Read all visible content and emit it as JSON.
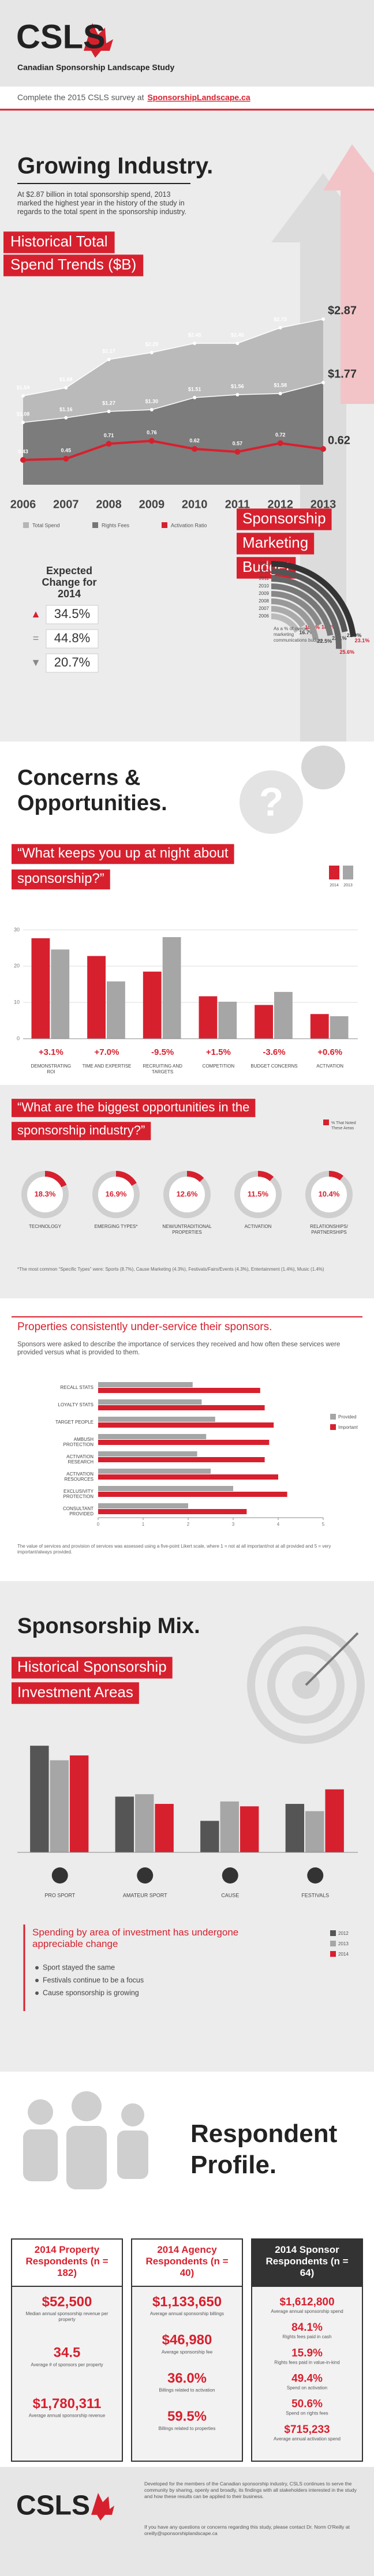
{
  "header": {
    "logo": "CSLS",
    "subtitle": "Canadian Sponsorship Landscape Study",
    "banner": "Complete the 2015 CSLS survey at",
    "banner_link": "SponsorshipLandscape.ca"
  },
  "growing": {
    "title": "Growing Industry.",
    "text": "At $2.87 billion in total sponsorship spend, 2013 marked the highest year in the history of the study in regards to the total spent in the sponsorship industry."
  },
  "concerns": {
    "title": "Concerns & Opportunities."
  },
  "mix": {
    "title": "Sponsorship Mix.",
    "heading": "Spending by area of investment has undergone appreciable change",
    "bullets": [
      "Sport stayed the same",
      "Festivals continue to be a focus",
      "Cause sponsorship is growing"
    ]
  },
  "profile": {
    "title": "Respondent Profile.",
    "columns": [
      {
        "title": "2014 Property Respondents (n = 182)",
        "items": [
          {
            "value": "$52,500",
            "label": "Median annual sponsorship revenue per property"
          },
          {
            "value": "34.5",
            "label": "Average # of sponsors per property"
          },
          {
            "value": "$1,780,311",
            "label": "Average annual sponsorship revenue"
          }
        ]
      },
      {
        "title": "2014 Agency Respondents (n = 40)",
        "items": [
          {
            "value": "$1,133,650",
            "label": "Average annual sponsorship billings"
          },
          {
            "value": "$46,980",
            "label": "Average sponsorship fee"
          },
          {
            "value": "36.0%",
            "label": "Billings related to activation"
          },
          {
            "value": "59.5%",
            "label": "Billings related to properties"
          }
        ]
      },
      {
        "title": "2014 Sponsor Respondents (n = 64)",
        "items": [
          {
            "value": "$1,612,800",
            "label": "Average annual sponsorship spend"
          },
          {
            "value": "84.1%",
            "label": "Rights fees paid in cash"
          },
          {
            "value": "15.9%",
            "label": "Rights fees paid in value-in-kind"
          },
          {
            "value": "49.4%",
            "label": "Spend on activation"
          },
          {
            "value": "50.6%",
            "label": "Spend on rights fees"
          },
          {
            "value": "$715,233",
            "label": "Average annual activation spend"
          }
        ]
      }
    ]
  },
  "footer": {
    "logo": "CSLS",
    "text": "Developed for the members of the Canadian sponsorship industry, CSLS continues to serve the community by sharing, openly and broadly, its findings with all stakeholders interested in the study and how these results can be applied to their business.",
    "contact": "If you have any questions or concerns regarding this study, please contact Dr. Norm O'Reilly at oreilly@sponsorshiplandscape.ca"
  },
  "chart_data": [
    {
      "type": "line",
      "title": "Historical Total Spend Trends ($B)",
      "categories": [
        "2006",
        "2007",
        "2008",
        "2009",
        "2010",
        "2011",
        "2012",
        "2013"
      ],
      "ylim": [
        0,
        3.2
      ],
      "series": [
        {
          "name": "Total Spend",
          "color": "#b5b5b5",
          "values": [
            1.54,
            1.68,
            2.17,
            2.29,
            2.45,
            2.45,
            2.72,
            2.87
          ],
          "value_labels": [
            "$1.54",
            "$1.68",
            "$2.17",
            "$2.29",
            "$2.45",
            "$2.45",
            "$2.72",
            "$2.87"
          ]
        },
        {
          "name": "Rights Fees",
          "color": "#767676",
          "values": [
            1.08,
            1.16,
            1.27,
            1.3,
            1.51,
            1.56,
            1.58,
            1.77
          ],
          "value_labels": [
            "$1.08",
            "$1.16",
            "$1.27",
            "$1.30",
            "$1.51",
            "$1.56",
            "$1.58",
            "$1.77"
          ]
        },
        {
          "name": "Activation Ratio",
          "color": "#d7202e",
          "values": [
            0.43,
            0.45,
            0.71,
            0.76,
            0.62,
            0.57,
            0.72,
            0.62
          ]
        }
      ]
    },
    {
      "type": "list",
      "title": "Expected Change for 2014",
      "values": [
        34.5,
        44.8,
        20.7
      ],
      "value_labels": [
        "34.5%",
        "44.8%",
        "20.7%"
      ],
      "color": "#d7202e"
    },
    {
      "type": "radial",
      "title": "Sponsorship Marketing Budget",
      "subtitle": "As a % of overall marketing communications budget",
      "categories": [
        "2006",
        "2007",
        "2008",
        "2009",
        "2010",
        "2011",
        "2012",
        "2013"
      ],
      "values": [
        16.7,
        15.9,
        22.5,
        18.3,
        22.1,
        25.6,
        21.9,
        23.1
      ],
      "value_labels": [
        "16.7%",
        "15.9%",
        "22.5%",
        "18.3%",
        "22.1%",
        "25.6%",
        "21.9%",
        "23.1%"
      ]
    },
    {
      "type": "bar",
      "title": "“What keeps you up at night about sponsorship?”",
      "categories": [
        "DEMONSTRATING ROI",
        "TIME AND EXPERTISE",
        "RECRUITING AND TARGETS",
        "COMPETITION",
        "BUDGET CONCERNS",
        "ACTIVATION"
      ],
      "ylim": [
        0,
        35
      ],
      "yticks": [
        0,
        10,
        20,
        30
      ],
      "grid": true,
      "series": [
        {
          "name": "2014",
          "color": "#d7202e",
          "values": [
            27.7,
            22.8,
            18.5,
            11.7,
            9.3,
            6.8
          ]
        },
        {
          "name": "2013",
          "color": "#a6a6a6",
          "values": [
            24.6,
            15.8,
            28.0,
            10.2,
            12.9,
            6.2
          ]
        }
      ],
      "changes": [
        "+3.1%",
        "+7.0%",
        "-9.5%",
        "+1.5%",
        "-3.6%",
        "+0.6%"
      ]
    },
    {
      "type": "donut",
      "title": "“What are the biggest opportunities in the sponsorship industry?”",
      "legend": "% That Noted These Areas",
      "categories": [
        "TECHNOLOGY",
        "EMERGING TYPES*",
        "NEW/UNTRADITIONAL PROPERTIES",
        "ACTIVATION",
        "RELATIONSHIPS/ PARTNERSHIPS"
      ],
      "values": [
        18.3,
        16.9,
        12.6,
        11.5,
        10.4
      ],
      "value_labels": [
        "18.3%",
        "16.9%",
        "12.6%",
        "11.5%",
        "10.4%"
      ],
      "color": "#d7202e",
      "note": "*The most common “Specific Types” were: Sports (8.7%), Cause Marketing (4.3%), Festivals/Fairs/Events (4.3%), Entertainment (1.4%), Music (1.4%)"
    },
    {
      "type": "hbar",
      "title": "Properties consistently under-service their sponsors.",
      "subtitle": "Sponsors were asked to describe the importance of services they received and how often these services were provided versus what is provided to them.",
      "categories": [
        "RECALL STATS",
        "LOYALTY STATS",
        "TARGET PEOPLE",
        "AMBUSH PROTECTION",
        "ACTIVATION RESEARCH",
        "ACTIVATION RESOURCES",
        "EXCLUSIVITY PROTECTION",
        "CONSULTANT PROVIDED"
      ],
      "xlim": [
        0,
        5
      ],
      "xticks": [
        0,
        1,
        2,
        3,
        4,
        5
      ],
      "series": [
        {
          "name": "Provided",
          "color": "#a6a6a6",
          "values": [
            2.1,
            2.3,
            2.6,
            2.4,
            2.2,
            2.5,
            3.0,
            2.0
          ]
        },
        {
          "name": "Important",
          "color": "#d7202e",
          "values": [
            3.6,
            3.7,
            3.9,
            3.8,
            3.7,
            4.0,
            4.2,
            3.3
          ]
        }
      ],
      "note": "The value of services and provision of services was assessed using a five-point Likert scale, where 1 = not at all important/not at all provided and 5 = very important/always provided."
    },
    {
      "type": "bar",
      "title": "Historical Sponsorship Investment Areas",
      "categories": [
        "PRO SPORT",
        "AMATEUR SPORT",
        "CAUSE",
        "FESTIVALS"
      ],
      "ylim": [
        0,
        50
      ],
      "series": [
        {
          "name": "2012",
          "color": "#555555",
          "values": [
            44,
            23,
            13,
            20
          ]
        },
        {
          "name": "2013",
          "color": "#a6a6a6",
          "values": [
            38,
            24,
            21,
            17
          ]
        },
        {
          "name": "2014",
          "color": "#d7202e",
          "values": [
            40,
            20,
            19,
            26
          ]
        }
      ]
    }
  ]
}
